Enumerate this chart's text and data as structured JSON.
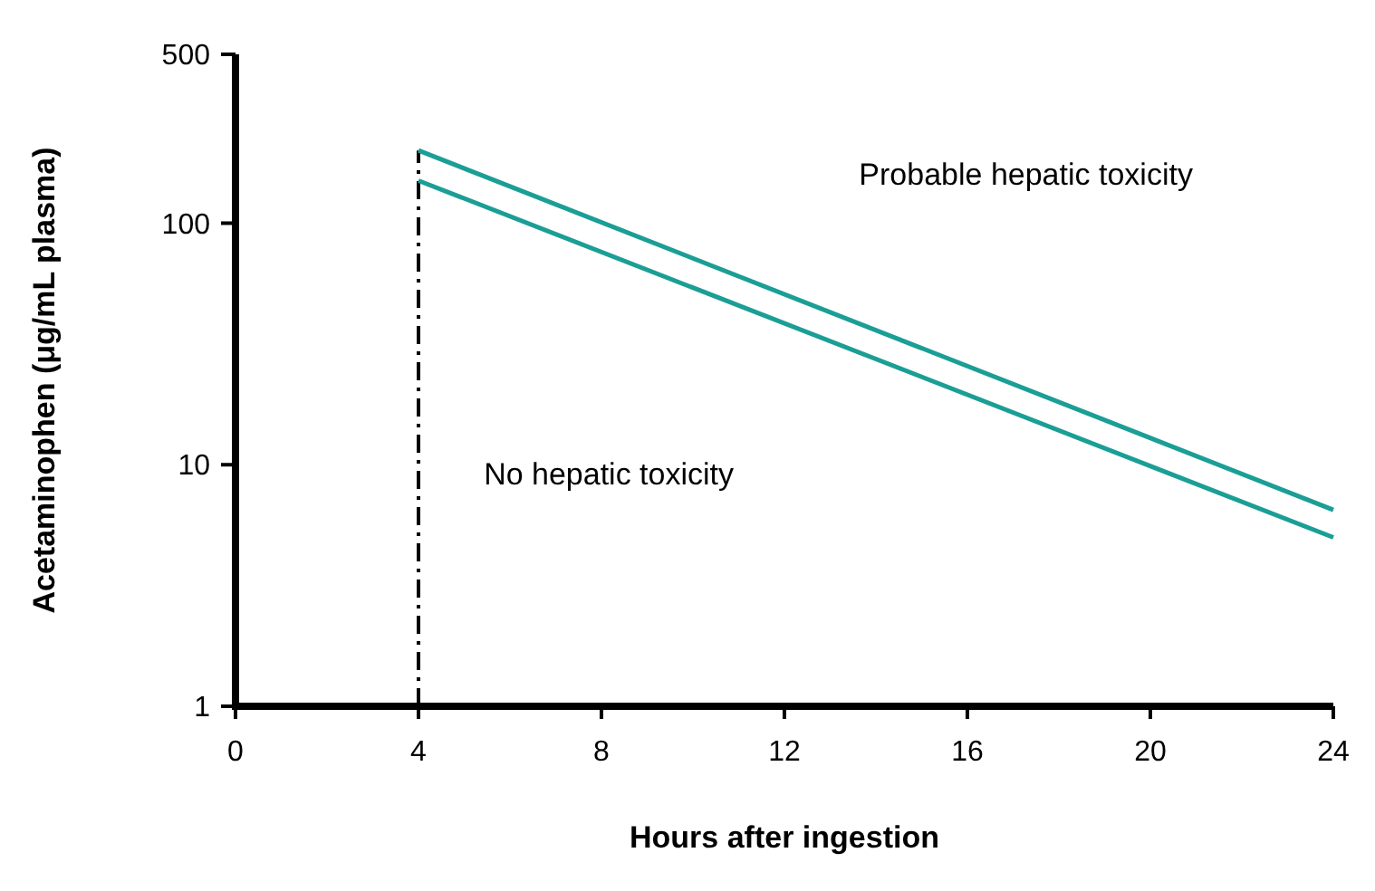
{
  "chart_data": {
    "type": "line",
    "xlabel": "Hours after ingestion",
    "ylabel": "Acetaminophen (μg/mL plasma)",
    "log": "y",
    "xlim": [
      0,
      24
    ],
    "xticks": [
      0,
      4,
      8,
      12,
      16,
      20,
      24
    ],
    "ylim": [
      1,
      500
    ],
    "yticks": [
      1,
      10,
      100,
      500
    ],
    "grid": false,
    "line_style": "solid",
    "x": [
      4,
      24
    ],
    "series": [
      {
        "color": "#1a9e96",
        "values": [
          200,
          6.5
        ]
      },
      {
        "color": "#1a9e96",
        "values": [
          150,
          5
        ]
      }
    ],
    "ref_lines": [
      {
        "axis": "x",
        "value": 4,
        "color": "#000000",
        "line_style": "dashed"
      }
    ],
    "annotations": [
      "Probable hepatic toxicity",
      "No hepatic toxicity"
    ]
  }
}
